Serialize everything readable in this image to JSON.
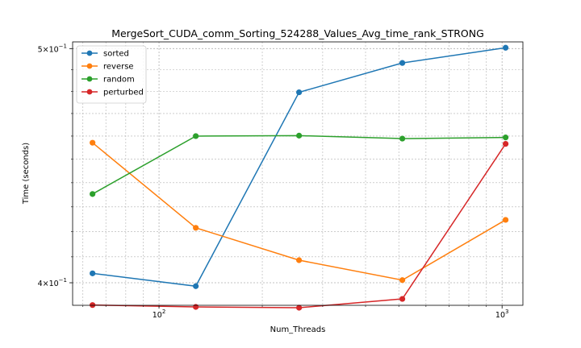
{
  "chart_data": {
    "type": "line",
    "title": "MergeSort_CUDA_comm_Sorting_524288_Values_Avg_time_rank_STRONG",
    "xlabel": "Num_Threads",
    "ylabel": "Time (seconds)",
    "xscale": "log",
    "yscale": "log",
    "xlim": [
      56,
      1150
    ],
    "ylim": [
      0.3915,
      0.5032
    ],
    "x": [
      64,
      128,
      256,
      512,
      1024
    ],
    "xticks": [
      {
        "value": 100,
        "base": "10",
        "exp": "2"
      },
      {
        "value": 1000,
        "base": "10",
        "exp": "3"
      }
    ],
    "yticks": [
      {
        "value": 0.4,
        "mant": "4",
        "exp": "−1"
      },
      {
        "value": 0.5,
        "mant": "5",
        "exp": "−1"
      }
    ],
    "series": [
      {
        "name": "sorted",
        "color": "#1f77b4",
        "values": [
          0.4036,
          0.3987,
          0.4796,
          0.4932,
          0.5004
        ]
      },
      {
        "name": "reverse",
        "color": "#ff7f0e",
        "values": [
          0.4571,
          0.4215,
          0.4087,
          0.401,
          0.4247
        ]
      },
      {
        "name": "random",
        "color": "#2ca02c",
        "values": [
          0.4353,
          0.46,
          0.4602,
          0.4589,
          0.4594
        ]
      },
      {
        "name": "perturbed",
        "color": "#d62728",
        "values": [
          0.3916,
          0.3909,
          0.3906,
          0.3939,
          0.4566
        ]
      }
    ],
    "grid": true,
    "legend_position": "top-left"
  }
}
